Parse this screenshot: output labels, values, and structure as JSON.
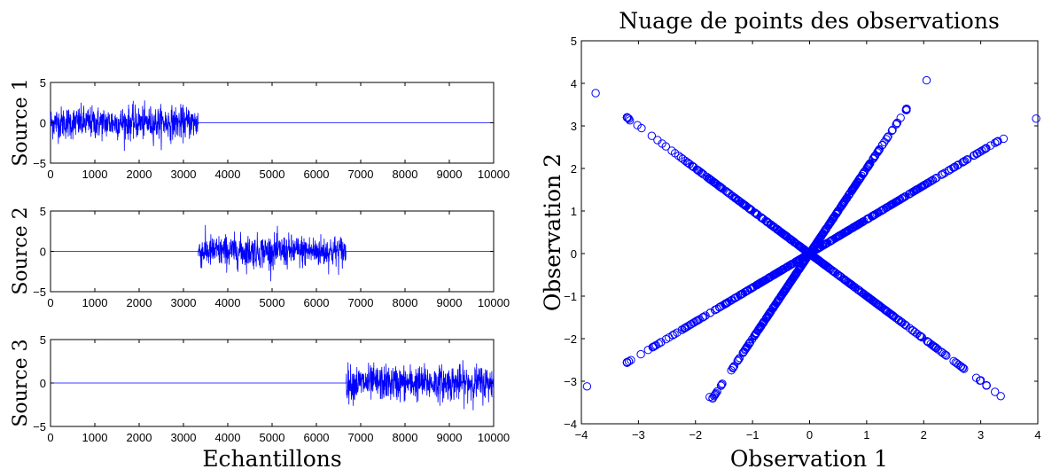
{
  "chart_data": [
    {
      "type": "line",
      "ylabel": "Source 1",
      "xlabel": "",
      "xlim": [
        0,
        10000
      ],
      "ylim": [
        -5,
        5
      ],
      "xticks": [
        0,
        1000,
        2000,
        3000,
        4000,
        5000,
        6000,
        7000,
        8000,
        9000,
        10000
      ],
      "yticks": [
        -5,
        0,
        5
      ],
      "color": "#0000ff",
      "series": [
        {
          "active_range": [
            0,
            3333
          ],
          "amplitude_min": -3.5,
          "amplitude_max": 4.0,
          "value_elsewhere": 0
        }
      ]
    },
    {
      "type": "line",
      "ylabel": "Source 2",
      "xlabel": "",
      "xlim": [
        0,
        10000
      ],
      "ylim": [
        -5,
        5
      ],
      "xticks": [
        0,
        1000,
        2000,
        3000,
        4000,
        5000,
        6000,
        7000,
        8000,
        9000,
        10000
      ],
      "yticks": [
        -5,
        0,
        5
      ],
      "color": "#0000ff",
      "series": [
        {
          "active_range": [
            3333,
            6667
          ],
          "amplitude_min": -3.7,
          "amplitude_max": 3.4,
          "value_elsewhere": 0
        }
      ]
    },
    {
      "type": "line",
      "ylabel": "Source 3",
      "xlabel": "Echantillons",
      "xlim": [
        0,
        10000
      ],
      "ylim": [
        -5,
        5
      ],
      "xticks": [
        0,
        1000,
        2000,
        3000,
        4000,
        5000,
        6000,
        7000,
        8000,
        9000,
        10000
      ],
      "yticks": [
        -5,
        0,
        5
      ],
      "color": "#0000ff",
      "series": [
        {
          "active_range": [
            6667,
            10000
          ],
          "amplitude_min": -3.4,
          "amplitude_max": 4.1,
          "value_elsewhere": 0
        }
      ]
    },
    {
      "type": "scatter",
      "title": "Nuage de points des observations",
      "xlabel": "Observation 1",
      "ylabel": "Observation 2",
      "xlim": [
        -4,
        4
      ],
      "ylim": [
        -4,
        5
      ],
      "xticks": [
        -4,
        -3,
        -2,
        -1,
        0,
        1,
        2,
        3,
        4
      ],
      "yticks": [
        -4,
        -3,
        -2,
        -1,
        0,
        1,
        2,
        3,
        4,
        5
      ],
      "marker": "open-circle",
      "color": "#0000ff",
      "lines": [
        {
          "slope": 2.0,
          "x_range": [
            -1.7,
            1.7
          ]
        },
        {
          "slope": -1.0,
          "x_range": [
            -3.2,
            3.1
          ]
        },
        {
          "slope": 0.8,
          "x_range": [
            -3.2,
            3.3
          ]
        }
      ],
      "outliers": [
        [
          -3.75,
          3.77
        ],
        [
          2.05,
          4.07
        ],
        [
          3.97,
          3.17
        ],
        [
          3.4,
          2.7
        ],
        [
          -3.9,
          -3.12
        ],
        [
          3.35,
          -3.35
        ],
        [
          -1.75,
          -3.37
        ],
        [
          1.7,
          3.37
        ],
        [
          -3.15,
          3.13
        ],
        [
          3.25,
          2.6
        ],
        [
          -3.2,
          -2.55
        ],
        [
          -1.65,
          -3.3
        ],
        [
          3.0,
          -2.98
        ],
        [
          3.25,
          -3.25
        ]
      ]
    }
  ]
}
